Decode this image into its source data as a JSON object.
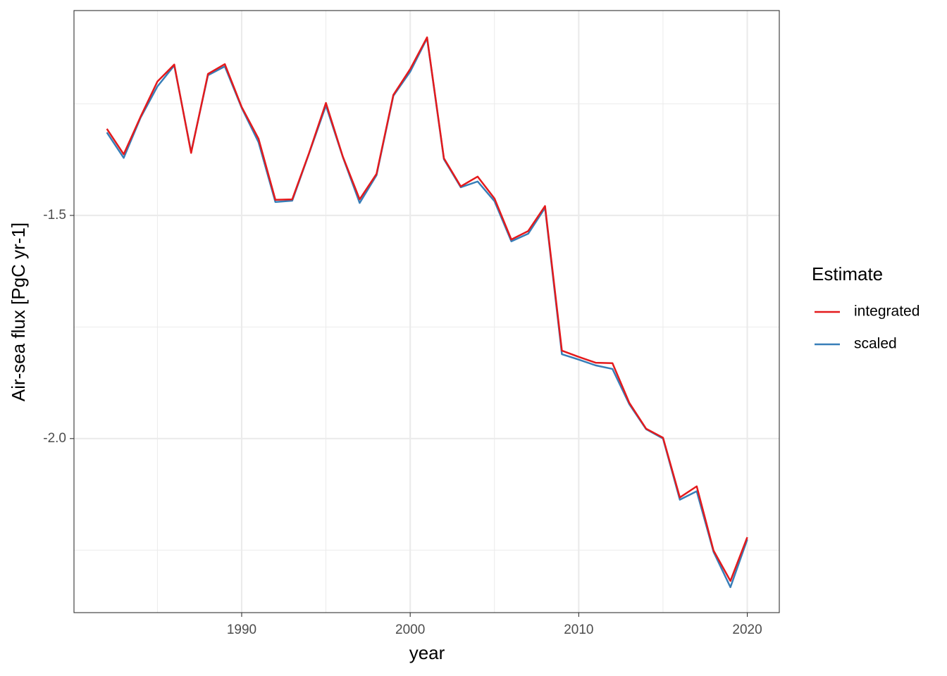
{
  "chart_data": {
    "type": "line",
    "x_label": "year",
    "y_label": "Air-sea flux [PgC yr-1]",
    "legend_title": "Estimate",
    "legend": "right",
    "x": [
      1982,
      1983,
      1984,
      1985,
      1986,
      1987,
      1988,
      1989,
      1990,
      1991,
      1992,
      1993,
      1994,
      1995,
      1996,
      1997,
      1998,
      1999,
      2000,
      2001,
      2002,
      2003,
      2004,
      2005,
      2006,
      2007,
      2008,
      2009,
      2010,
      2011,
      2012,
      2013,
      2014,
      2015,
      2016,
      2017,
      2018,
      2019,
      2020
    ],
    "series": [
      {
        "name": "integrated",
        "color": "#e41a1c",
        "values": [
          -1.306,
          -1.363,
          -1.279,
          -1.2,
          -1.162,
          -1.36,
          -1.183,
          -1.161,
          -1.257,
          -1.328,
          -1.465,
          -1.464,
          -1.36,
          -1.248,
          -1.368,
          -1.464,
          -1.407,
          -1.23,
          -1.172,
          -1.101,
          -1.372,
          -1.435,
          -1.413,
          -1.462,
          -1.554,
          -1.535,
          -1.479,
          -1.803,
          -1.817,
          -1.83,
          -1.831,
          -1.92,
          -1.978,
          -1.998,
          -2.132,
          -2.107,
          -2.251,
          -2.319,
          -2.221
        ]
      },
      {
        "name": "scaled",
        "color": "#377eb8",
        "values": [
          -1.314,
          -1.371,
          -1.281,
          -1.211,
          -1.164,
          -1.358,
          -1.186,
          -1.166,
          -1.259,
          -1.336,
          -1.47,
          -1.467,
          -1.361,
          -1.254,
          -1.369,
          -1.472,
          -1.41,
          -1.232,
          -1.178,
          -1.103,
          -1.374,
          -1.437,
          -1.424,
          -1.468,
          -1.558,
          -1.541,
          -1.483,
          -1.811,
          -1.823,
          -1.836,
          -1.844,
          -1.923,
          -1.979,
          -2.0,
          -2.137,
          -2.118,
          -2.254,
          -2.333,
          -2.226
        ]
      }
    ],
    "xlim": [
      1980.05,
      2021.9
    ],
    "xticks": [
      1990,
      2000,
      2010,
      2020
    ],
    "xminor": [
      1985,
      1995,
      2005,
      2015
    ],
    "ylim": [
      -2.39,
      -1.041
    ],
    "yticks": [
      -1.5,
      {
        "value": -2,
        "label": "-2.0"
      }
    ],
    "yminor": [
      -1.25,
      -1.75,
      -2.25
    ],
    "grid": true
  }
}
